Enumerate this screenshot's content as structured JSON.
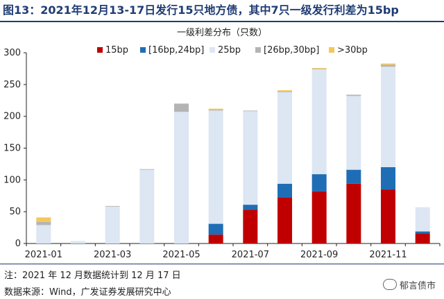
{
  "header": {
    "title": "图13：2021年12月13-17日发行15只地方债，其中7只一级发行利差为15bp"
  },
  "footer": {
    "note": "注：2021 年 12 月数据统计到 12 月 17 日",
    "source": "数据来源：Wind，广发证券发展研究中心",
    "watermark": "郁言债市"
  },
  "colors": {
    "s15": "#c00000",
    "s16_24": "#1f6eb5",
    "s25": "#dde6f3",
    "s26_30": "#b4b4b4",
    "s30p": "#f2c75c",
    "axis": "#222222"
  },
  "chart_data": {
    "type": "bar",
    "stacked": true,
    "title": "一级利差分布（只数）",
    "xlabel": "",
    "ylabel": "",
    "ylim": [
      0,
      300
    ],
    "yticks": [
      0,
      50,
      100,
      150,
      200,
      250,
      300
    ],
    "grid": false,
    "legend_position": "top",
    "categories": [
      "2021-01",
      "2021-02",
      "2021-03",
      "2021-04",
      "2021-05",
      "2021-06",
      "2021-07",
      "2021-08",
      "2021-09",
      "2021-10",
      "2021-11",
      "2021-12"
    ],
    "xtick_labels": [
      "2021-01",
      "2021-03",
      "2021-05",
      "2021-07",
      "2021-09",
      "2021-11"
    ],
    "series": [
      {
        "name": "15bp",
        "color_key": "s15",
        "values": [
          0,
          0,
          0,
          0,
          0,
          14,
          53,
          72,
          82,
          94,
          85,
          16
        ]
      },
      {
        "name": "[16bp,24bp]",
        "color_key": "s16_24",
        "values": [
          0,
          0,
          0,
          0,
          0,
          17,
          8,
          22,
          27,
          22,
          35,
          3
        ]
      },
      {
        "name": "25bp",
        "color_key": "s25",
        "values": [
          29,
          4,
          58,
          116,
          207,
          178,
          147,
          144,
          165,
          116,
          158,
          38
        ]
      },
      {
        "name": "[26bp,30bp]",
        "color_key": "s26_30",
        "values": [
          5,
          0,
          1,
          1,
          13,
          1,
          1,
          1,
          1,
          2,
          3,
          0
        ]
      },
      {
        "name": ">30bp",
        "color_key": "s30p",
        "values": [
          7,
          0,
          0,
          0,
          0,
          2,
          0,
          2,
          1,
          0,
          2,
          0
        ]
      }
    ]
  }
}
